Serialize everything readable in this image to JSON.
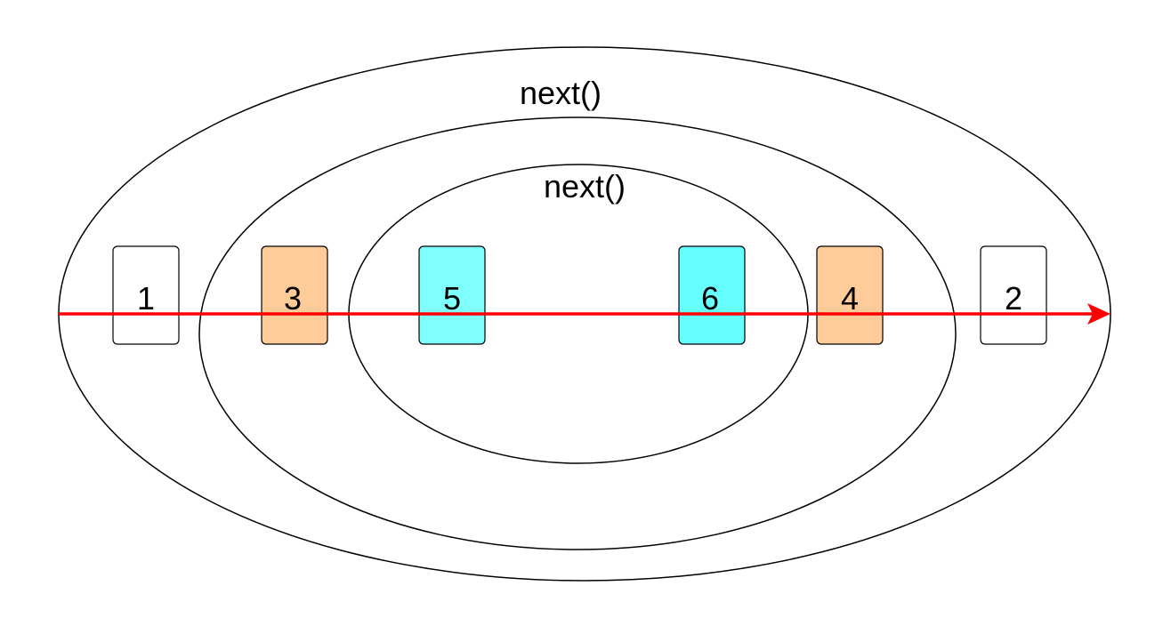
{
  "ellipses": [
    {
      "id": "outer",
      "label": "next()"
    },
    {
      "id": "middle",
      "label": "next()"
    },
    {
      "id": "inner",
      "label": ""
    }
  ],
  "boxes": [
    {
      "label": "1",
      "fill": "#ffffff"
    },
    {
      "label": "3",
      "fill": "#ffcc99"
    },
    {
      "label": "5",
      "fill": "#80ffff"
    },
    {
      "label": "6",
      "fill": "#66ffff"
    },
    {
      "label": "4",
      "fill": "#ffcc99"
    },
    {
      "label": "2",
      "fill": "#ffffff"
    }
  ],
  "arrow": {
    "color": "#ff0000"
  }
}
